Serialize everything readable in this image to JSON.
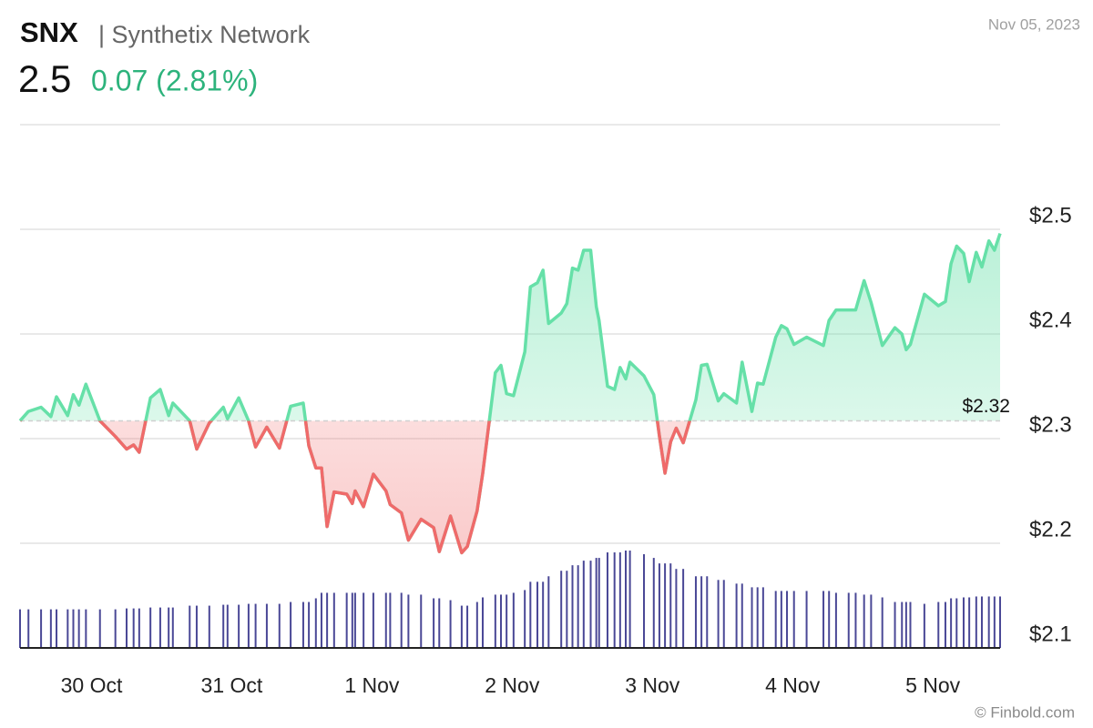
{
  "header": {
    "symbol": "SNX",
    "name": "| Synthetix Network",
    "date": "Nov 05, 2023",
    "price": "2.5",
    "change": "0.07 (2.81%)",
    "credit": "© Finbold.com"
  },
  "chart_data": {
    "type": "line",
    "x": [
      -0.51,
      -0.45,
      -0.36,
      -0.29,
      -0.25,
      -0.17,
      -0.13,
      -0.09,
      -0.04,
      0.06,
      0.17,
      0.25,
      0.3,
      0.34,
      0.42,
      0.49,
      0.55,
      0.58,
      0.7,
      0.75,
      0.84,
      0.94,
      0.97,
      1.05,
      1.12,
      1.17,
      1.25,
      1.34,
      1.42,
      1.51,
      1.55,
      1.6,
      1.64,
      1.68,
      1.73,
      1.82,
      1.86,
      1.88,
      1.94,
      2.01,
      2.1,
      2.13,
      2.21,
      2.26,
      2.35,
      2.44,
      2.48,
      2.56,
      2.64,
      2.68,
      2.75,
      2.79,
      2.88,
      2.92,
      2.96,
      3.01,
      3.09,
      3.13,
      3.18,
      3.22,
      3.26,
      3.35,
      3.39,
      3.43,
      3.47,
      3.51,
      3.56,
      3.6,
      3.62,
      3.68,
      3.73,
      3.77,
      3.81,
      3.84,
      3.94,
      4.01,
      4.05,
      4.09,
      4.13,
      4.17,
      4.22,
      4.31,
      4.35,
      4.39,
      4.47,
      4.51,
      4.6,
      4.64,
      4.71,
      4.75,
      4.79,
      4.88,
      4.92,
      4.96,
      5.01,
      5.1,
      5.22,
      5.26,
      5.31,
      5.4,
      5.45,
      5.51,
      5.56,
      5.64,
      5.73,
      5.78,
      5.81,
      5.84,
      5.94,
      6.04,
      6.09,
      6.13,
      6.17,
      6.22,
      6.26,
      6.31,
      6.35,
      6.4,
      6.44,
      6.48
    ],
    "series": [
      {
        "name": "Price",
        "color": "#66e0a8",
        "below_color": "#f06a6a",
        "values": [
          2.317,
          2.326,
          2.33,
          2.321,
          2.34,
          2.322,
          2.342,
          2.332,
          2.352,
          2.317,
          2.302,
          2.29,
          2.294,
          2.287,
          2.339,
          2.347,
          2.322,
          2.334,
          2.317,
          2.29,
          2.315,
          2.33,
          2.319,
          2.339,
          2.317,
          2.292,
          2.311,
          2.291,
          2.331,
          2.334,
          2.293,
          2.272,
          2.272,
          2.216,
          2.249,
          2.247,
          2.238,
          2.25,
          2.235,
          2.266,
          2.25,
          2.237,
          2.229,
          2.203,
          2.223,
          2.215,
          2.192,
          2.226,
          2.191,
          2.197,
          2.231,
          2.267,
          2.363,
          2.37,
          2.343,
          2.341,
          2.383,
          2.445,
          2.449,
          2.461,
          2.41,
          2.42,
          2.429,
          2.463,
          2.461,
          2.48,
          2.48,
          2.426,
          2.413,
          2.35,
          2.347,
          2.368,
          2.357,
          2.373,
          2.36,
          2.342,
          2.303,
          2.267,
          2.297,
          2.31,
          2.296,
          2.337,
          2.37,
          2.371,
          2.336,
          2.343,
          2.334,
          2.373,
          2.326,
          2.353,
          2.352,
          2.397,
          2.408,
          2.405,
          2.39,
          2.397,
          2.389,
          2.413,
          2.423,
          2.423,
          2.423,
          2.451,
          2.43,
          2.389,
          2.406,
          2.4,
          2.385,
          2.39,
          2.438,
          2.427,
          2.431,
          2.467,
          2.484,
          2.477,
          2.45,
          2.478,
          2.464,
          2.489,
          2.48,
          2.496
        ]
      },
      {
        "name": "Volume",
        "color": "#4a4896",
        "values": [
          42,
          42,
          42,
          42,
          42,
          42,
          42,
          42,
          42,
          42,
          42,
          43,
          43,
          43,
          44,
          44,
          44,
          44,
          46,
          46,
          46,
          47,
          47,
          47,
          48,
          48,
          48,
          48,
          50,
          50,
          50,
          54,
          60,
          60,
          60,
          60,
          60,
          60,
          60,
          60,
          60,
          60,
          60,
          58,
          58,
          54,
          54,
          52,
          46,
          46,
          50,
          55,
          58,
          58,
          58,
          60,
          63,
          72,
          72,
          72,
          78,
          84,
          84,
          90,
          90,
          95,
          95,
          98,
          98,
          104,
          104,
          104,
          106,
          106,
          102,
          98,
          92,
          92,
          92,
          86,
          86,
          78,
          78,
          78,
          74,
          74,
          70,
          70,
          66,
          66,
          66,
          62,
          62,
          62,
          62,
          62,
          62,
          62,
          60,
          60,
          60,
          58,
          58,
          55,
          50,
          50,
          50,
          50,
          48,
          50,
          50,
          54,
          54,
          55,
          55,
          56,
          56,
          56,
          56,
          56
        ]
      }
    ],
    "reference": {
      "value": 2.317,
      "label": "$2.32"
    },
    "xlim": [
      -0.51,
      6.48
    ],
    "xticks": [
      {
        "value": 0,
        "label": "30 Oct"
      },
      {
        "value": 1,
        "label": "31 Oct"
      },
      {
        "value": 2,
        "label": "1 Nov"
      },
      {
        "value": 3,
        "label": "2 Nov"
      },
      {
        "value": 4,
        "label": "3 Nov"
      },
      {
        "value": 5,
        "label": "4 Nov"
      },
      {
        "value": 6,
        "label": "5 Nov"
      }
    ],
    "ylim": [
      2.1,
      2.6
    ],
    "yticks": [
      {
        "value": 2.1,
        "label": "$2.1"
      },
      {
        "value": 2.2,
        "label": "$2.2"
      },
      {
        "value": 2.3,
        "label": "$2.3"
      },
      {
        "value": 2.4,
        "label": "$2.4"
      },
      {
        "value": 2.5,
        "label": "$2.5"
      }
    ],
    "grid": true
  }
}
